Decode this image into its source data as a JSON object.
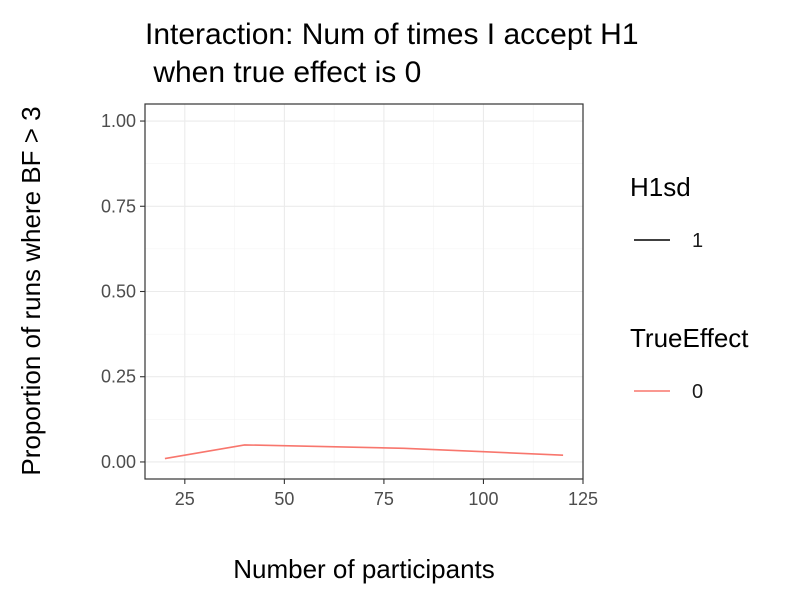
{
  "chart_data": {
    "type": "line",
    "title_lines": [
      "Interaction: Num of times I accept H1",
      " when true effect is 0"
    ],
    "xlabel": "Number of participants",
    "ylabel": "Proportion of runs where BF > 3",
    "xlim": [
      15,
      125
    ],
    "ylim": [
      -0.05,
      1.05
    ],
    "x_ticks": [
      25,
      50,
      75,
      100,
      125
    ],
    "x_tick_labels": [
      "25",
      "50",
      "75",
      "100",
      "125"
    ],
    "y_ticks": [
      0,
      0.25,
      0.5,
      0.75,
      1.0
    ],
    "y_tick_labels": [
      "0.00",
      "0.25",
      "0.50",
      "0.75",
      "1.00"
    ],
    "grid": true,
    "legend_position": "right",
    "legends": [
      {
        "title": "H1sd",
        "entries": [
          {
            "label": "1",
            "color": "#000000"
          }
        ]
      },
      {
        "title": "TrueEffect",
        "entries": [
          {
            "label": "0",
            "color": "#F8766D"
          }
        ]
      }
    ],
    "series": [
      {
        "color": "#F8766D",
        "x": [
          20,
          40,
          60,
          80,
          100,
          120
        ],
        "y": [
          0.01,
          0.05,
          0.045,
          0.04,
          0.03,
          0.02
        ]
      }
    ]
  }
}
